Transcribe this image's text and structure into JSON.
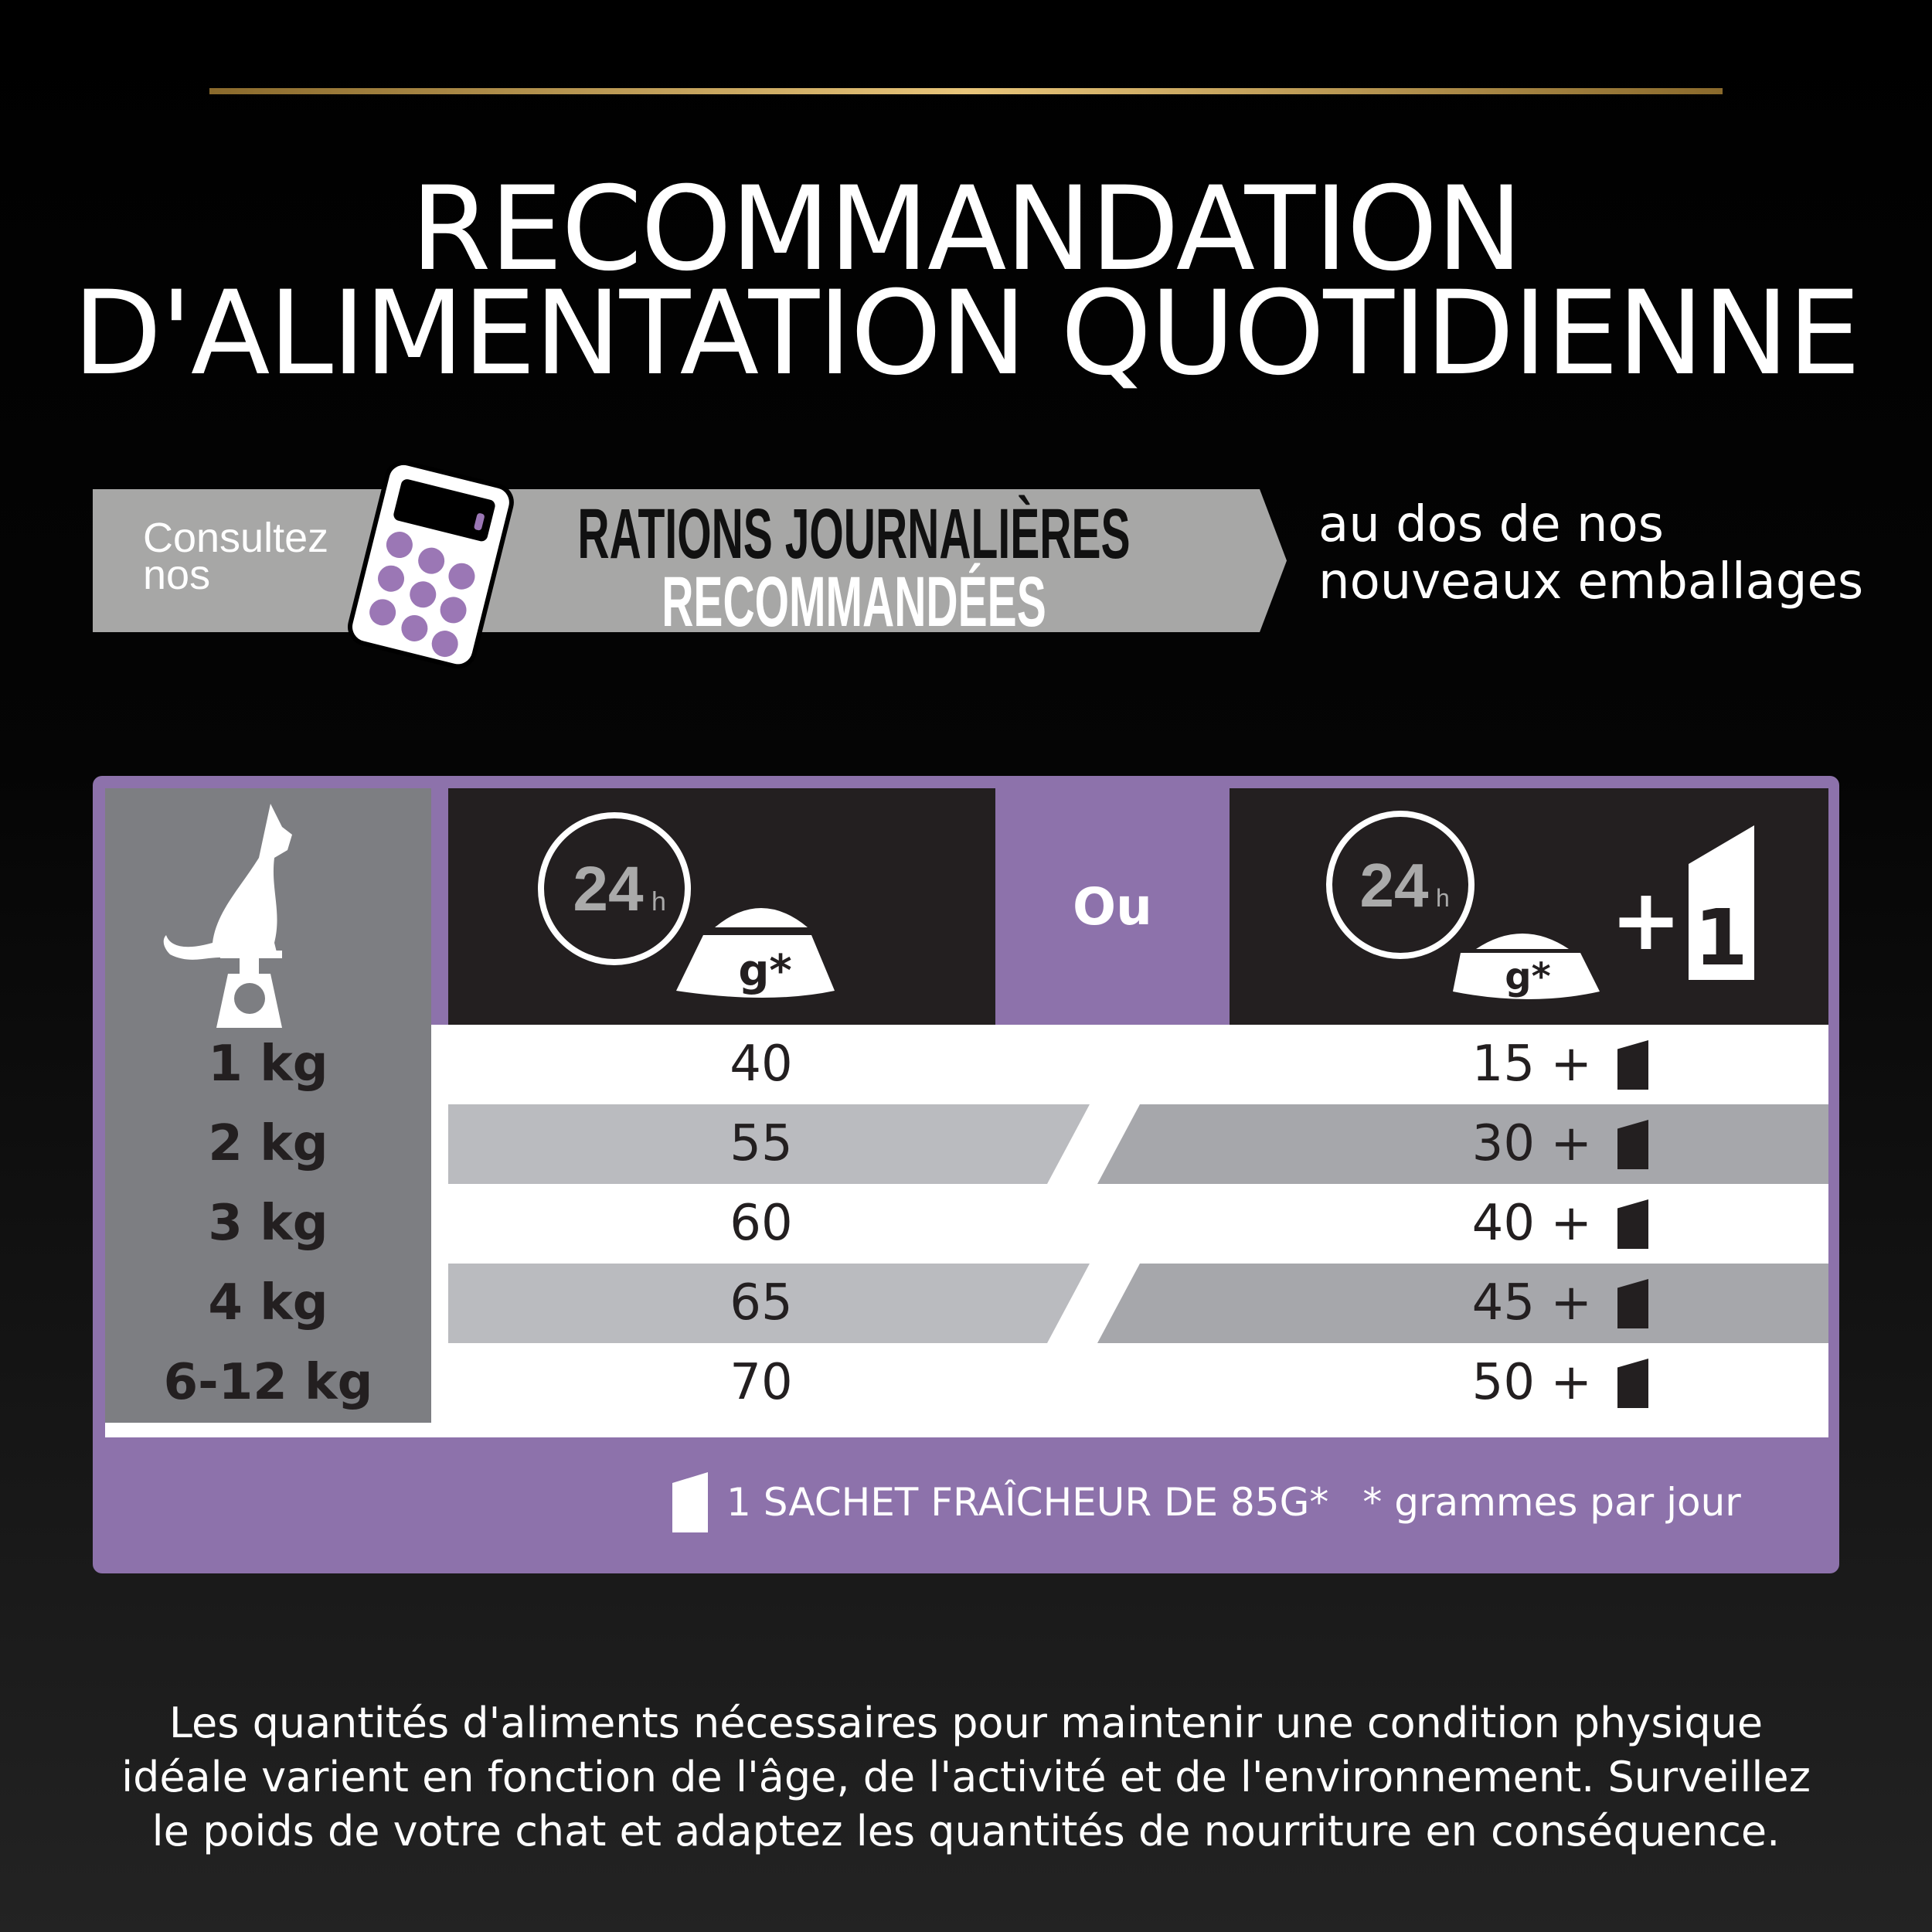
{
  "title": {
    "line1": "RECOMMANDATION",
    "line2": "D'ALIMENTATION QUOTIDIENNE"
  },
  "banner": {
    "consult_line1": "Consultez",
    "consult_line2": "nos",
    "rations_line1": "RATIONS JOURNALIÈRES",
    "rations_line2": "RECOMMANDÉES",
    "aside_line1": "au dos de nos",
    "aside_line2": "nouveaux emballages"
  },
  "table": {
    "header": {
      "clock_label": "24",
      "clock_unit": "h",
      "bowl_label": "g*",
      "or_label": "Ou",
      "plus": "+",
      "pouch_count": "1"
    },
    "rows": [
      {
        "weight": "1 kg",
        "dry": "40",
        "mixed": "15 +"
      },
      {
        "weight": "2 kg",
        "dry": "55",
        "mixed": "30 +"
      },
      {
        "weight": "3 kg",
        "dry": "60",
        "mixed": "40 +"
      },
      {
        "weight": "4 kg",
        "dry": "65",
        "mixed": "45 +"
      },
      {
        "weight": "6-12 kg",
        "dry": "70",
        "mixed": "50 +"
      }
    ],
    "footer_pouch": "1 SACHET FRAÎCHEUR DE 85G*",
    "footer_note": "* grammes par jour"
  },
  "paragraph": {
    "line1": "Les quantités d'aliments nécessaires pour maintenir une condition physique",
    "line2": "idéale varient en fonction de l'âge, de l'activité et de l'environnement. Surveillez",
    "line3": "le poids de votre chat et adaptez les quantités de nourriture en conséquence."
  },
  "colors": {
    "accent": "#8d72ab",
    "gold": "#d4b066",
    "dark": "#231f20"
  }
}
